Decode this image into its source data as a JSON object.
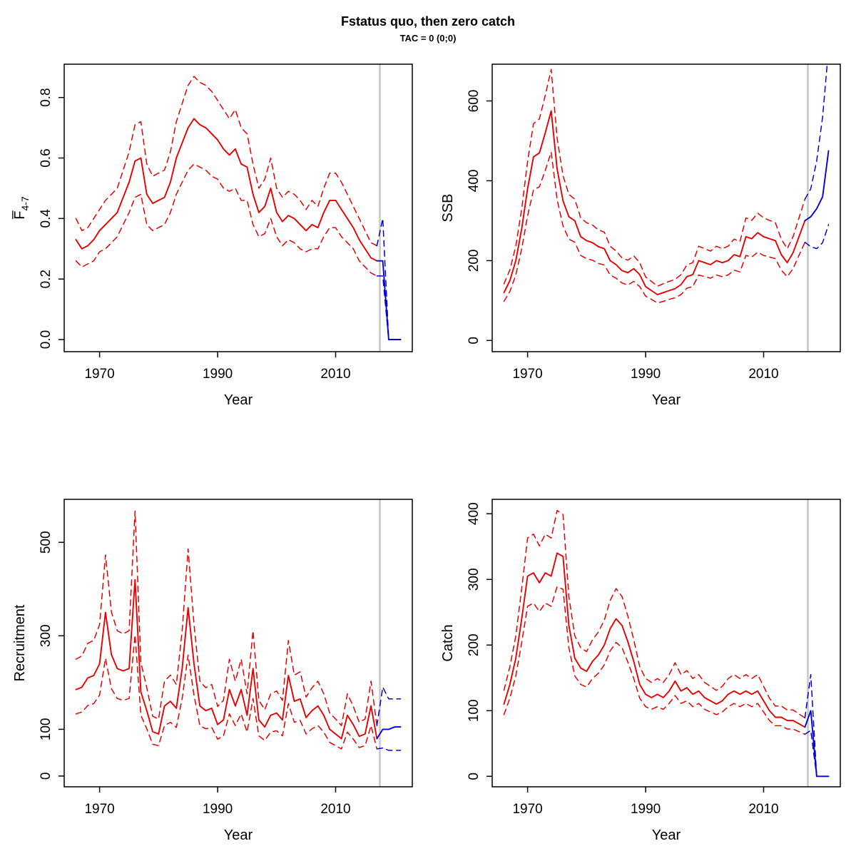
{
  "title": "Fstatus quo, then zero catch",
  "subtitle": "TAC = 0 (0;0)",
  "colors": {
    "history": "#e60000",
    "forecast": "#0000dd",
    "divider": "#c6c6c6",
    "box": "#000000"
  },
  "chart_data": [
    {
      "type": "line",
      "name": "fbar",
      "ylabel": "F̅",
      "ylabel_sub": "4-7",
      "xlabel": "Year",
      "xlim": [
        1964,
        2023
      ],
      "ylim": [
        -0.04,
        0.91
      ],
      "xticks": [
        1970,
        1990,
        2010
      ],
      "yticks": [
        0,
        0.2,
        0.4,
        0.6,
        0.8
      ],
      "ytick_labels": [
        "0.0",
        "0.2",
        "0.4",
        "0.6",
        "0.8"
      ],
      "divider_x": 2017.5,
      "history": {
        "start_year": 1966,
        "median": [
          0.33,
          0.3,
          0.31,
          0.33,
          0.36,
          0.38,
          0.4,
          0.42,
          0.47,
          0.52,
          0.59,
          0.6,
          0.48,
          0.45,
          0.46,
          0.47,
          0.52,
          0.6,
          0.65,
          0.7,
          0.73,
          0.71,
          0.7,
          0.68,
          0.66,
          0.63,
          0.61,
          0.63,
          0.58,
          0.57,
          0.48,
          0.42,
          0.44,
          0.5,
          0.42,
          0.39,
          0.41,
          0.4,
          0.38,
          0.36,
          0.38,
          0.37,
          0.42,
          0.46,
          0.46,
          0.43,
          0.4,
          0.37,
          0.33,
          0.3,
          0.27,
          0.26
        ],
        "lo": [
          0.26,
          0.24,
          0.25,
          0.26,
          0.29,
          0.3,
          0.32,
          0.34,
          0.38,
          0.42,
          0.47,
          0.48,
          0.38,
          0.36,
          0.37,
          0.38,
          0.42,
          0.48,
          0.52,
          0.56,
          0.58,
          0.57,
          0.56,
          0.54,
          0.53,
          0.5,
          0.49,
          0.5,
          0.46,
          0.46,
          0.38,
          0.34,
          0.35,
          0.4,
          0.34,
          0.31,
          0.33,
          0.32,
          0.3,
          0.29,
          0.3,
          0.3,
          0.34,
          0.37,
          0.37,
          0.34,
          0.32,
          0.3,
          0.26,
          0.24,
          0.22,
          0.21
        ],
        "hi": [
          0.4,
          0.36,
          0.37,
          0.4,
          0.43,
          0.46,
          0.48,
          0.5,
          0.56,
          0.62,
          0.71,
          0.72,
          0.58,
          0.54,
          0.55,
          0.56,
          0.62,
          0.72,
          0.78,
          0.84,
          0.87,
          0.85,
          0.84,
          0.82,
          0.79,
          0.76,
          0.73,
          0.76,
          0.7,
          0.68,
          0.58,
          0.5,
          0.53,
          0.6,
          0.5,
          0.47,
          0.49,
          0.48,
          0.46,
          0.43,
          0.46,
          0.44,
          0.5,
          0.55,
          0.55,
          0.52,
          0.48,
          0.44,
          0.4,
          0.36,
          0.32,
          0.31
        ]
      },
      "forecast": {
        "start_year": 2017,
        "median": [
          0.26,
          0.26,
          0.0,
          0.0,
          0.0
        ],
        "lo": [
          0.21,
          0.21,
          0.0,
          0.0,
          0.0
        ],
        "hi": [
          0.31,
          0.4,
          0.0,
          0.0,
          0.0
        ]
      }
    },
    {
      "type": "line",
      "name": "ssb",
      "ylabel": "SSB",
      "ylabel_sub": null,
      "xlabel": "Year",
      "xlim": [
        1964,
        2023
      ],
      "ylim": [
        -28,
        692
      ],
      "xticks": [
        1970,
        1990,
        2010
      ],
      "yticks": [
        0,
        200,
        400,
        600
      ],
      "ytick_labels": [
        "0",
        "200",
        "400",
        "600"
      ],
      "divider_x": 2017.5,
      "history": {
        "start_year": 1966,
        "median": [
          120,
          150,
          200,
          280,
          380,
          460,
          470,
          520,
          575,
          430,
          350,
          310,
          300,
          260,
          250,
          245,
          235,
          230,
          200,
          190,
          175,
          170,
          180,
          165,
          135,
          125,
          115,
          120,
          125,
          130,
          140,
          160,
          165,
          200,
          195,
          190,
          200,
          195,
          200,
          215,
          210,
          260,
          255,
          270,
          260,
          255,
          250,
          215,
          195,
          220,
          260,
          300
        ],
        "lo": [
          98,
          123,
          164,
          230,
          312,
          377,
          385,
          426,
          472,
          353,
          287,
          254,
          246,
          213,
          205,
          201,
          193,
          189,
          164,
          156,
          144,
          139,
          148,
          135,
          111,
          103,
          94,
          98,
          103,
          107,
          115,
          131,
          135,
          164,
          160,
          156,
          164,
          160,
          164,
          176,
          172,
          213,
          209,
          221,
          213,
          209,
          205,
          176,
          160,
          180,
          213,
          246
        ],
        "hi": [
          142,
          177,
          236,
          330,
          448,
          543,
          555,
          614,
          679,
          507,
          413,
          366,
          354,
          307,
          295,
          289,
          277,
          271,
          236,
          224,
          207,
          201,
          212,
          195,
          159,
          148,
          136,
          142,
          148,
          153,
          165,
          189,
          195,
          236,
          230,
          224,
          236,
          230,
          236,
          254,
          248,
          307,
          301,
          319,
          307,
          301,
          295,
          254,
          230,
          260,
          307,
          354
        ]
      },
      "forecast": {
        "start_year": 2017,
        "median": [
          300,
          310,
          330,
          360,
          475
        ],
        "lo": [
          246,
          235,
          230,
          245,
          290
        ],
        "hi": [
          354,
          380,
          450,
          560,
          730
        ]
      }
    },
    {
      "type": "line",
      "name": "recruitment",
      "ylabel": "Recruitment",
      "ylabel_sub": null,
      "xlabel": "Year",
      "xlim": [
        1964,
        2023
      ],
      "ylim": [
        -23,
        592
      ],
      "xticks": [
        1970,
        1990,
        2010
      ],
      "yticks": [
        0,
        100,
        300,
        500
      ],
      "ytick_labels": [
        "0",
        "100",
        "300",
        "500"
      ],
      "divider_x": 2017.5,
      "history": {
        "start_year": 1966,
        "median": [
          185,
          190,
          210,
          215,
          240,
          350,
          260,
          230,
          225,
          230,
          420,
          180,
          140,
          95,
          90,
          150,
          160,
          145,
          230,
          360,
          240,
          150,
          140,
          145,
          110,
          120,
          185,
          150,
          185,
          130,
          230,
          120,
          105,
          130,
          135,
          120,
          215,
          160,
          165,
          125,
          140,
          150,
          130,
          100,
          90,
          80,
          130,
          110,
          85,
          90,
          150,
          80
        ],
        "lo": [
          133,
          137,
          151,
          155,
          173,
          252,
          187,
          166,
          162,
          166,
          302,
          130,
          101,
          68,
          65,
          108,
          115,
          104,
          166,
          259,
          173,
          108,
          101,
          104,
          79,
          86,
          133,
          108,
          133,
          94,
          166,
          86,
          76,
          94,
          97,
          86,
          155,
          115,
          119,
          90,
          101,
          108,
          94,
          72,
          65,
          58,
          94,
          79,
          61,
          65,
          108,
          58
        ],
        "hi": [
          250,
          257,
          284,
          290,
          324,
          473,
          351,
          311,
          304,
          311,
          567,
          243,
          189,
          128,
          122,
          203,
          216,
          196,
          311,
          486,
          324,
          203,
          189,
          196,
          149,
          162,
          250,
          203,
          250,
          176,
          311,
          162,
          142,
          176,
          182,
          162,
          290,
          216,
          223,
          169,
          189,
          203,
          176,
          135,
          122,
          108,
          176,
          149,
          115,
          122,
          203,
          108
        ]
      },
      "forecast": {
        "start_year": 2017,
        "median": [
          80,
          100,
          100,
          105,
          105
        ],
        "lo": [
          58,
          60,
          55,
          55,
          55
        ],
        "hi": [
          108,
          190,
          165,
          165,
          165
        ]
      }
    },
    {
      "type": "line",
      "name": "catch",
      "ylabel": "Catch",
      "ylabel_sub": null,
      "xlabel": "Year",
      "xlim": [
        1964,
        2023
      ],
      "ylim": [
        -16,
        422
      ],
      "xticks": [
        1970,
        1990,
        2010
      ],
      "yticks": [
        0,
        100,
        200,
        300,
        400
      ],
      "ytick_labels": [
        "0",
        "100",
        "200",
        "300",
        "400"
      ],
      "divider_x": 2017.5,
      "history": {
        "start_year": 1966,
        "median": [
          110,
          140,
          180,
          240,
          305,
          310,
          295,
          310,
          305,
          340,
          335,
          230,
          180,
          165,
          160,
          175,
          185,
          200,
          225,
          240,
          230,
          205,
          175,
          140,
          125,
          120,
          125,
          120,
          130,
          145,
          130,
          135,
          125,
          130,
          120,
          115,
          110,
          115,
          125,
          130,
          125,
          130,
          125,
          130,
          115,
          100,
          90,
          90,
          85,
          85,
          80,
          75
        ],
        "lo": [
          94,
          119,
          153,
          204,
          259,
          264,
          251,
          264,
          259,
          289,
          285,
          196,
          153,
          140,
          136,
          149,
          157,
          170,
          191,
          204,
          196,
          174,
          149,
          119,
          106,
          102,
          106,
          102,
          111,
          123,
          111,
          115,
          106,
          111,
          102,
          98,
          94,
          98,
          106,
          111,
          106,
          111,
          106,
          111,
          98,
          85,
          77,
          77,
          72,
          72,
          68,
          64
        ],
        "hi": [
          131,
          167,
          214,
          286,
          363,
          369,
          351,
          369,
          363,
          405,
          399,
          274,
          214,
          196,
          190,
          208,
          220,
          238,
          268,
          286,
          274,
          244,
          208,
          167,
          149,
          143,
          149,
          143,
          155,
          173,
          155,
          161,
          149,
          155,
          143,
          137,
          131,
          137,
          149,
          155,
          149,
          155,
          149,
          155,
          137,
          119,
          107,
          107,
          101,
          101,
          95,
          89
        ]
      },
      "forecast": {
        "start_year": 2017,
        "median": [
          75,
          100,
          0,
          0,
          0
        ],
        "lo": [
          64,
          70,
          0,
          0,
          0
        ],
        "hi": [
          89,
          155,
          0,
          0,
          0
        ]
      }
    }
  ]
}
